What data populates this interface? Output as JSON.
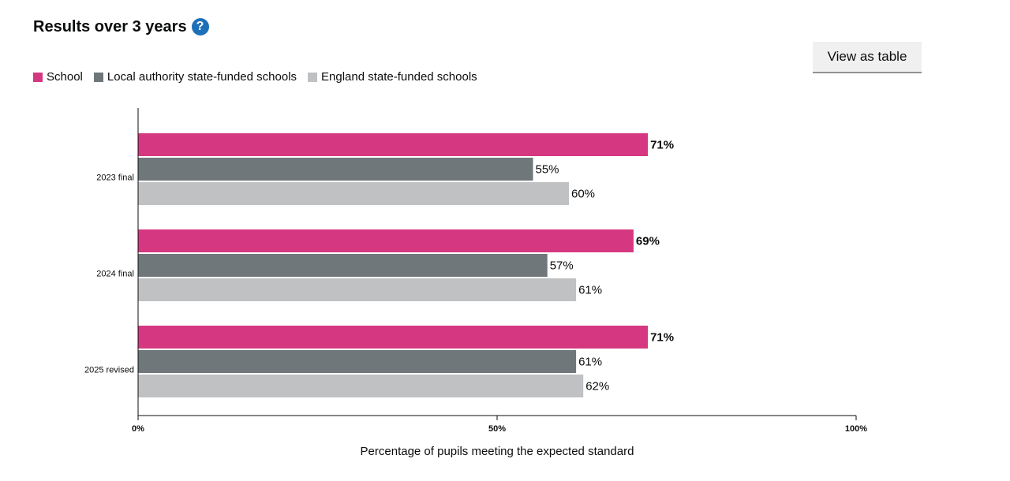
{
  "heading": {
    "title": "Results over 3 years",
    "help_icon": "?"
  },
  "toolbar": {
    "view_table_label": "View as table"
  },
  "chart_data": {
    "type": "bar",
    "orientation": "horizontal",
    "categories": [
      "2023 final",
      "2024 final",
      "2025 revised"
    ],
    "series": [
      {
        "name": "School",
        "color": "#d53880",
        "values": [
          71,
          69,
          71
        ],
        "labels": [
          "71%",
          "69%",
          "71%"
        ]
      },
      {
        "name": "Local authority state-funded schools",
        "color": "#6f777b",
        "values": [
          55,
          57,
          61
        ],
        "labels": [
          "55%",
          "57%",
          "61%"
        ]
      },
      {
        "name": "England state-funded schools",
        "color": "#bfc1c3",
        "values": [
          60,
          61,
          62
        ],
        "labels": [
          "60%",
          "61%",
          "62%"
        ]
      }
    ],
    "xlim": [
      0,
      100
    ],
    "xticks": [
      0,
      50,
      100
    ],
    "xtick_labels": [
      "0%",
      "50%",
      "100%"
    ],
    "xlabel": "Percentage of pupils meeting the expected standard",
    "legend_position": "top-left"
  }
}
